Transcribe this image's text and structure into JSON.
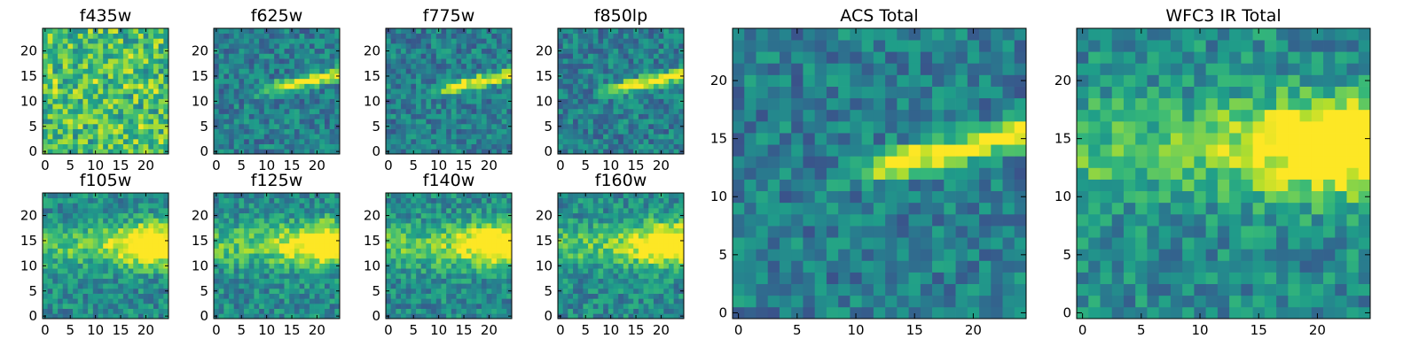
{
  "chart_data": [
    {
      "type": "heatmap",
      "title": "f435w",
      "colormap": "viridis",
      "grid_size": 25,
      "xlim": [
        0,
        24
      ],
      "ylim": [
        0,
        24
      ],
      "x_ticks": [
        0,
        5,
        10,
        15,
        20
      ],
      "y_ticks": [
        0,
        5,
        10,
        15,
        20
      ],
      "grid": false,
      "feature": "noise",
      "seed": 11
    },
    {
      "type": "heatmap",
      "title": "f625w",
      "colormap": "viridis",
      "grid_size": 25,
      "xlim": [
        0,
        24
      ],
      "ylim": [
        0,
        24
      ],
      "x_ticks": [
        0,
        5,
        10,
        15,
        20
      ],
      "y_ticks": [
        0,
        5,
        10,
        15,
        20
      ],
      "grid": false,
      "feature": "streak",
      "seed": 12
    },
    {
      "type": "heatmap",
      "title": "f775w",
      "colormap": "viridis",
      "grid_size": 25,
      "xlim": [
        0,
        24
      ],
      "ylim": [
        0,
        24
      ],
      "x_ticks": [
        0,
        5,
        10,
        15,
        20
      ],
      "y_ticks": [
        0,
        5,
        10,
        15,
        20
      ],
      "grid": false,
      "feature": "streak",
      "seed": 13
    },
    {
      "type": "heatmap",
      "title": "f850lp",
      "colormap": "viridis",
      "grid_size": 25,
      "xlim": [
        0,
        24
      ],
      "ylim": [
        0,
        24
      ],
      "x_ticks": [
        0,
        5,
        10,
        15,
        20
      ],
      "y_ticks": [
        0,
        5,
        10,
        15,
        20
      ],
      "grid": false,
      "feature": "streak",
      "seed": 14
    },
    {
      "type": "heatmap",
      "title": "f105w",
      "colormap": "viridis",
      "grid_size": 25,
      "xlim": [
        0,
        24
      ],
      "ylim": [
        0,
        24
      ],
      "x_ticks": [
        0,
        5,
        10,
        15,
        20
      ],
      "y_ticks": [
        0,
        5,
        10,
        15,
        20
      ],
      "grid": false,
      "feature": "blob",
      "seed": 21
    },
    {
      "type": "heatmap",
      "title": "f125w",
      "colormap": "viridis",
      "grid_size": 25,
      "xlim": [
        0,
        24
      ],
      "ylim": [
        0,
        24
      ],
      "x_ticks": [
        0,
        5,
        10,
        15,
        20
      ],
      "y_ticks": [
        0,
        5,
        10,
        15,
        20
      ],
      "grid": false,
      "feature": "blob",
      "seed": 22
    },
    {
      "type": "heatmap",
      "title": "f140w",
      "colormap": "viridis",
      "grid_size": 25,
      "xlim": [
        0,
        24
      ],
      "ylim": [
        0,
        24
      ],
      "x_ticks": [
        0,
        5,
        10,
        15,
        20
      ],
      "y_ticks": [
        0,
        5,
        10,
        15,
        20
      ],
      "grid": false,
      "feature": "blob",
      "seed": 23
    },
    {
      "type": "heatmap",
      "title": "f160w",
      "colormap": "viridis",
      "grid_size": 25,
      "xlim": [
        0,
        24
      ],
      "ylim": [
        0,
        24
      ],
      "x_ticks": [
        0,
        5,
        10,
        15,
        20
      ],
      "y_ticks": [
        0,
        5,
        10,
        15,
        20
      ],
      "grid": false,
      "feature": "blob",
      "seed": 24
    },
    {
      "type": "heatmap",
      "title": "ACS Total",
      "colormap": "viridis",
      "grid_size": 25,
      "xlim": [
        0,
        24
      ],
      "ylim": [
        0,
        24
      ],
      "x_ticks": [
        0,
        5,
        10,
        15,
        20
      ],
      "y_ticks": [
        0,
        5,
        10,
        15,
        20
      ],
      "grid": false,
      "feature": "streak",
      "seed": 31
    },
    {
      "type": "heatmap",
      "title": "WFC3 IR Total",
      "colormap": "viridis",
      "grid_size": 25,
      "xlim": [
        0,
        24
      ],
      "ylim": [
        0,
        24
      ],
      "x_ticks": [
        0,
        5,
        10,
        15,
        20
      ],
      "y_ticks": [
        0,
        5,
        10,
        15,
        20
      ],
      "grid": false,
      "feature": "blob",
      "seed": 32
    }
  ]
}
